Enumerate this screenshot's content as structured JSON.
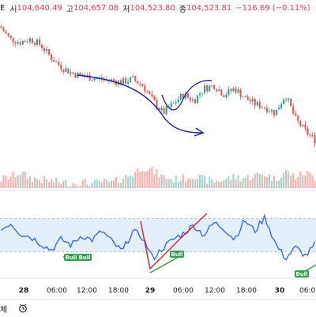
{
  "header": {
    "symbol_fragment": "E",
    "open_label": "시",
    "open_value": "104,640.49",
    "high_label": "고",
    "high_value": "104,657.08",
    "low_label": "저",
    "low_value": "104,523.80",
    "close_label": "종",
    "close_value": "104,523.81",
    "change_value": "−116.69 (−0.11%)"
  },
  "bottom_bar": {
    "label": "체",
    "icon": "alarm-clock-icon"
  },
  "colors": {
    "up": "#26a69a",
    "down": "#ef5350",
    "up_volume": "#9fd5cf",
    "down_volume": "#f6b1ae",
    "rsi_line": "#2962ff",
    "rsi_band": "#e3effd",
    "bull_green": "#2e9e47",
    "divergence_red": "#e31b23",
    "drawing_navy": "#1c1c9c"
  },
  "chart_data": {
    "type": "candlestick",
    "interval_note": "",
    "x_ticks": [
      {
        "label": "28",
        "day": true
      },
      {
        "label": "06:00",
        "day": false
      },
      {
        "label": "12:00",
        "day": false
      },
      {
        "label": "18:00",
        "day": false
      },
      {
        "label": "29",
        "day": true
      },
      {
        "label": "06:00",
        "day": false
      },
      {
        "label": "12:00",
        "day": false
      },
      {
        "label": "18:00",
        "day": false
      },
      {
        "label": "30",
        "day": true
      },
      {
        "label": "06:00",
        "day": false
      }
    ],
    "price_anchor_path": [
      [
        0,
        105.0
      ],
      [
        1,
        104.6
      ],
      [
        2,
        104.5
      ],
      [
        3,
        104.6
      ],
      [
        4,
        104.4
      ],
      [
        5,
        104.0
      ],
      [
        6,
        103.7
      ],
      [
        7,
        103.5
      ],
      [
        8,
        103.4
      ],
      [
        9,
        103.35
      ],
      [
        10,
        103.3
      ],
      [
        11,
        103.25
      ],
      [
        12,
        103.2
      ],
      [
        13,
        103.3
      ],
      [
        14,
        103.1
      ],
      [
        15,
        102.6
      ],
      [
        16,
        102.2
      ],
      [
        17,
        102.5
      ],
      [
        18,
        102.8
      ],
      [
        19,
        102.6
      ],
      [
        20,
        103.0
      ],
      [
        21,
        103.1
      ],
      [
        22,
        102.8
      ],
      [
        23,
        103.0
      ],
      [
        24,
        102.7
      ],
      [
        25,
        102.5
      ],
      [
        26,
        102.4
      ],
      [
        27,
        102.2
      ],
      [
        28,
        102.8
      ],
      [
        29,
        102.0
      ],
      [
        30,
        101.6
      ],
      [
        31,
        101.3
      ]
    ],
    "volume_level": [
      0.3,
      0.4,
      0.55,
      0.35,
      0.3,
      0.25,
      0.2,
      0.18,
      0.2,
      0.15,
      0.22,
      0.18,
      0.35,
      0.5,
      0.75,
      0.6,
      0.4,
      0.3,
      0.35,
      0.45,
      0.3,
      0.25,
      0.3,
      0.4,
      0.35,
      0.45,
      0.5,
      0.3,
      0.6,
      0.4,
      0.55,
      0.35
    ],
    "rsi": {
      "band": [
        30,
        70
      ],
      "anchor_path": [
        [
          0,
          55
        ],
        [
          1,
          65
        ],
        [
          2,
          52
        ],
        [
          3,
          48
        ],
        [
          4,
          40
        ],
        [
          5,
          32
        ],
        [
          6,
          45
        ],
        [
          7,
          38
        ],
        [
          8,
          50
        ],
        [
          9,
          44
        ],
        [
          10,
          55
        ],
        [
          11,
          42
        ],
        [
          12,
          30
        ],
        [
          13,
          55
        ],
        [
          14,
          47
        ],
        [
          15,
          22
        ],
        [
          16,
          35
        ],
        [
          17,
          45
        ],
        [
          18,
          52
        ],
        [
          19,
          62
        ],
        [
          20,
          50
        ],
        [
          21,
          65
        ],
        [
          22,
          58
        ],
        [
          23,
          45
        ],
        [
          24,
          68
        ],
        [
          25,
          55
        ],
        [
          26,
          72
        ],
        [
          27,
          40
        ],
        [
          28,
          22
        ],
        [
          29,
          35
        ],
        [
          30,
          25
        ],
        [
          31,
          40
        ]
      ]
    },
    "bull_labels": [
      "Bull",
      "Bull",
      "Bull",
      "Bull"
    ]
  }
}
